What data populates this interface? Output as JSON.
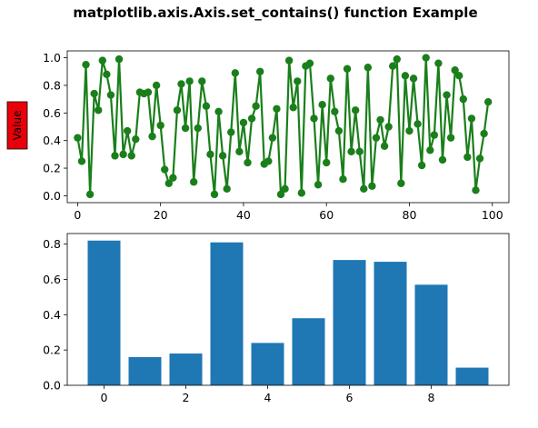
{
  "figure": {
    "suptitle": "matplotlib.axis.Axis.set_contains() function Example"
  },
  "chart_data": [
    {
      "type": "line",
      "marker": "circle",
      "color": "#1a7f1a",
      "x_start": 0,
      "values": [
        0.42,
        0.25,
        0.95,
        0.01,
        0.74,
        0.62,
        0.98,
        0.88,
        0.73,
        0.29,
        0.99,
        0.3,
        0.47,
        0.29,
        0.41,
        0.75,
        0.74,
        0.75,
        0.43,
        0.8,
        0.51,
        0.19,
        0.09,
        0.13,
        0.62,
        0.81,
        0.49,
        0.83,
        0.1,
        0.49,
        0.83,
        0.65,
        0.3,
        0.01,
        0.61,
        0.29,
        0.05,
        0.46,
        0.89,
        0.32,
        0.53,
        0.24,
        0.56,
        0.65,
        0.9,
        0.23,
        0.25,
        0.42,
        0.63,
        0.01,
        0.05,
        0.98,
        0.64,
        0.83,
        0.02,
        0.94,
        0.96,
        0.56,
        0.08,
        0.66,
        0.24,
        0.85,
        0.61,
        0.47,
        0.12,
        0.92,
        0.32,
        0.62,
        0.32,
        0.05,
        0.93,
        0.07,
        0.42,
        0.55,
        0.36,
        0.5,
        0.94,
        0.99,
        0.09,
        0.87,
        0.47,
        0.85,
        0.52,
        0.22,
        1.0,
        0.33,
        0.44,
        0.96,
        0.26,
        0.73,
        0.42,
        0.91,
        0.87,
        0.7,
        0.28,
        0.56,
        0.04,
        0.27,
        0.45,
        0.68
      ],
      "xlim": [
        -2.5,
        104
      ],
      "ylim": [
        -0.05,
        1.05
      ],
      "xticks": [
        0,
        20,
        40,
        60,
        80,
        100
      ],
      "xtick_labels": [
        "0",
        "20",
        "40",
        "60",
        "80",
        "100"
      ],
      "yticks": [
        0.0,
        0.2,
        0.4,
        0.6,
        0.8,
        1.0
      ],
      "ytick_labels": [
        "0.0",
        "0.2",
        "0.4",
        "0.6",
        "0.8",
        "1.0"
      ],
      "ylabel": "Value",
      "ylabel_box_color": "#e8000b"
    },
    {
      "type": "bar",
      "color": "#1f77b4",
      "categories": [
        0,
        1,
        2,
        3,
        4,
        5,
        6,
        7,
        8,
        9
      ],
      "values": [
        0.82,
        0.16,
        0.18,
        0.81,
        0.24,
        0.38,
        0.71,
        0.7,
        0.57,
        0.1
      ],
      "xlim": [
        -0.9,
        9.9
      ],
      "ylim": [
        0,
        0.86
      ],
      "xticks": [
        0,
        2,
        4,
        6,
        8
      ],
      "xtick_labels": [
        "0",
        "2",
        "4",
        "6",
        "8"
      ],
      "yticks": [
        0.0,
        0.2,
        0.4,
        0.6,
        0.8
      ],
      "ytick_labels": [
        "0.0",
        "0.2",
        "0.4",
        "0.6",
        "0.8"
      ]
    }
  ]
}
